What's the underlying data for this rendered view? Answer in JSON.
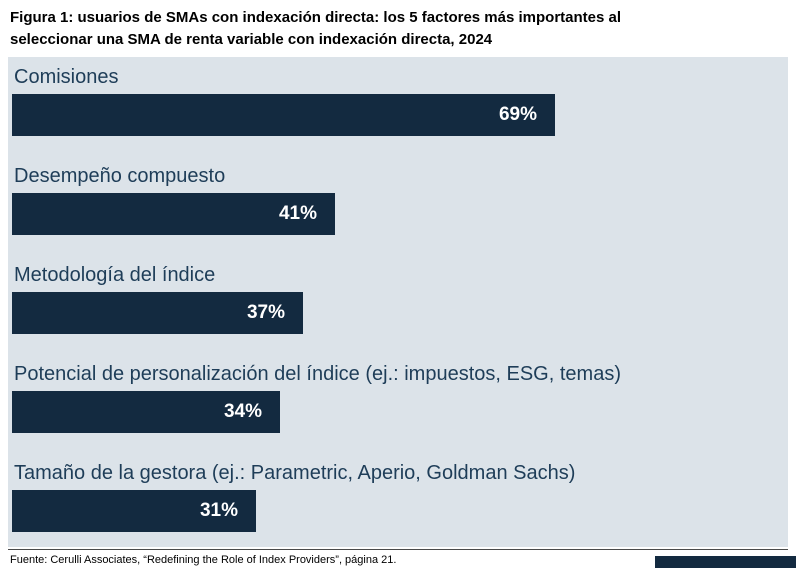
{
  "header": {
    "title_lines": [
      "Figura 1: usuarios de SMAs con indexación directa: los 5 factores más importantes al",
      "seleccionar una SMA de renta variable con indexación directa, 2024"
    ]
  },
  "chart_data": {
    "type": "bar",
    "orientation": "horizontal",
    "title": "Figura 1: usuarios de SMAs con indexación directa: los 5 factores más importantes al seleccionar una SMA de renta variable con indexación directa, 2024",
    "categories": [
      "Comisiones",
      "Desempeño compuesto",
      "Metodología del índice",
      "Potencial de personalización del índice (ej.: impuestos, ESG, temas)",
      "Tamaño de la gestora (ej.: Parametric, Aperio, Goldman Sachs)"
    ],
    "values": [
      69,
      41,
      37,
      34,
      31
    ],
    "value_labels": [
      "69%",
      "41%",
      "37%",
      "34%",
      "31%"
    ],
    "xlim": [
      0,
      100
    ],
    "grid": false,
    "legend": "none",
    "bar_color": "#132a40",
    "plot_background": "#dce3e9",
    "value_label_position": "inside-end"
  },
  "footer": {
    "source": "Fuente: Cerulli Associates, “Redefining the Role of Index Providers”, página 21."
  },
  "colors": {
    "bar": "#132a40",
    "plot_background": "#dce3e9",
    "category_text": "#1e3d58",
    "value_text": "#ffffff",
    "title_text": "#000000"
  }
}
